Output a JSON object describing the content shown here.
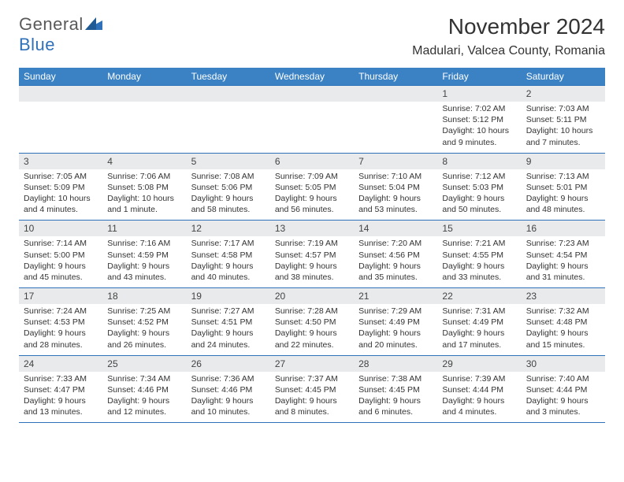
{
  "logo": {
    "general": "General",
    "blue": "Blue"
  },
  "title": "November 2024",
  "location": "Madulari, Valcea County, Romania",
  "colors": {
    "header_bg": "#3b82c4",
    "header_text": "#ffffff",
    "daynum_bg": "#e8eaec",
    "border": "#2f71b8",
    "body_text": "#333333",
    "logo_gray": "#5a5a5a",
    "logo_blue": "#2f71b8"
  },
  "day_headers": [
    "Sunday",
    "Monday",
    "Tuesday",
    "Wednesday",
    "Thursday",
    "Friday",
    "Saturday"
  ],
  "weeks": [
    [
      null,
      null,
      null,
      null,
      null,
      {
        "n": "1",
        "sr": "Sunrise: 7:02 AM",
        "ss": "Sunset: 5:12 PM",
        "dl1": "Daylight: 10 hours",
        "dl2": "and 9 minutes."
      },
      {
        "n": "2",
        "sr": "Sunrise: 7:03 AM",
        "ss": "Sunset: 5:11 PM",
        "dl1": "Daylight: 10 hours",
        "dl2": "and 7 minutes."
      }
    ],
    [
      {
        "n": "3",
        "sr": "Sunrise: 7:05 AM",
        "ss": "Sunset: 5:09 PM",
        "dl1": "Daylight: 10 hours",
        "dl2": "and 4 minutes."
      },
      {
        "n": "4",
        "sr": "Sunrise: 7:06 AM",
        "ss": "Sunset: 5:08 PM",
        "dl1": "Daylight: 10 hours",
        "dl2": "and 1 minute."
      },
      {
        "n": "5",
        "sr": "Sunrise: 7:08 AM",
        "ss": "Sunset: 5:06 PM",
        "dl1": "Daylight: 9 hours",
        "dl2": "and 58 minutes."
      },
      {
        "n": "6",
        "sr": "Sunrise: 7:09 AM",
        "ss": "Sunset: 5:05 PM",
        "dl1": "Daylight: 9 hours",
        "dl2": "and 56 minutes."
      },
      {
        "n": "7",
        "sr": "Sunrise: 7:10 AM",
        "ss": "Sunset: 5:04 PM",
        "dl1": "Daylight: 9 hours",
        "dl2": "and 53 minutes."
      },
      {
        "n": "8",
        "sr": "Sunrise: 7:12 AM",
        "ss": "Sunset: 5:03 PM",
        "dl1": "Daylight: 9 hours",
        "dl2": "and 50 minutes."
      },
      {
        "n": "9",
        "sr": "Sunrise: 7:13 AM",
        "ss": "Sunset: 5:01 PM",
        "dl1": "Daylight: 9 hours",
        "dl2": "and 48 minutes."
      }
    ],
    [
      {
        "n": "10",
        "sr": "Sunrise: 7:14 AM",
        "ss": "Sunset: 5:00 PM",
        "dl1": "Daylight: 9 hours",
        "dl2": "and 45 minutes."
      },
      {
        "n": "11",
        "sr": "Sunrise: 7:16 AM",
        "ss": "Sunset: 4:59 PM",
        "dl1": "Daylight: 9 hours",
        "dl2": "and 43 minutes."
      },
      {
        "n": "12",
        "sr": "Sunrise: 7:17 AM",
        "ss": "Sunset: 4:58 PM",
        "dl1": "Daylight: 9 hours",
        "dl2": "and 40 minutes."
      },
      {
        "n": "13",
        "sr": "Sunrise: 7:19 AM",
        "ss": "Sunset: 4:57 PM",
        "dl1": "Daylight: 9 hours",
        "dl2": "and 38 minutes."
      },
      {
        "n": "14",
        "sr": "Sunrise: 7:20 AM",
        "ss": "Sunset: 4:56 PM",
        "dl1": "Daylight: 9 hours",
        "dl2": "and 35 minutes."
      },
      {
        "n": "15",
        "sr": "Sunrise: 7:21 AM",
        "ss": "Sunset: 4:55 PM",
        "dl1": "Daylight: 9 hours",
        "dl2": "and 33 minutes."
      },
      {
        "n": "16",
        "sr": "Sunrise: 7:23 AM",
        "ss": "Sunset: 4:54 PM",
        "dl1": "Daylight: 9 hours",
        "dl2": "and 31 minutes."
      }
    ],
    [
      {
        "n": "17",
        "sr": "Sunrise: 7:24 AM",
        "ss": "Sunset: 4:53 PM",
        "dl1": "Daylight: 9 hours",
        "dl2": "and 28 minutes."
      },
      {
        "n": "18",
        "sr": "Sunrise: 7:25 AM",
        "ss": "Sunset: 4:52 PM",
        "dl1": "Daylight: 9 hours",
        "dl2": "and 26 minutes."
      },
      {
        "n": "19",
        "sr": "Sunrise: 7:27 AM",
        "ss": "Sunset: 4:51 PM",
        "dl1": "Daylight: 9 hours",
        "dl2": "and 24 minutes."
      },
      {
        "n": "20",
        "sr": "Sunrise: 7:28 AM",
        "ss": "Sunset: 4:50 PM",
        "dl1": "Daylight: 9 hours",
        "dl2": "and 22 minutes."
      },
      {
        "n": "21",
        "sr": "Sunrise: 7:29 AM",
        "ss": "Sunset: 4:49 PM",
        "dl1": "Daylight: 9 hours",
        "dl2": "and 20 minutes."
      },
      {
        "n": "22",
        "sr": "Sunrise: 7:31 AM",
        "ss": "Sunset: 4:49 PM",
        "dl1": "Daylight: 9 hours",
        "dl2": "and 17 minutes."
      },
      {
        "n": "23",
        "sr": "Sunrise: 7:32 AM",
        "ss": "Sunset: 4:48 PM",
        "dl1": "Daylight: 9 hours",
        "dl2": "and 15 minutes."
      }
    ],
    [
      {
        "n": "24",
        "sr": "Sunrise: 7:33 AM",
        "ss": "Sunset: 4:47 PM",
        "dl1": "Daylight: 9 hours",
        "dl2": "and 13 minutes."
      },
      {
        "n": "25",
        "sr": "Sunrise: 7:34 AM",
        "ss": "Sunset: 4:46 PM",
        "dl1": "Daylight: 9 hours",
        "dl2": "and 12 minutes."
      },
      {
        "n": "26",
        "sr": "Sunrise: 7:36 AM",
        "ss": "Sunset: 4:46 PM",
        "dl1": "Daylight: 9 hours",
        "dl2": "and 10 minutes."
      },
      {
        "n": "27",
        "sr": "Sunrise: 7:37 AM",
        "ss": "Sunset: 4:45 PM",
        "dl1": "Daylight: 9 hours",
        "dl2": "and 8 minutes."
      },
      {
        "n": "28",
        "sr": "Sunrise: 7:38 AM",
        "ss": "Sunset: 4:45 PM",
        "dl1": "Daylight: 9 hours",
        "dl2": "and 6 minutes."
      },
      {
        "n": "29",
        "sr": "Sunrise: 7:39 AM",
        "ss": "Sunset: 4:44 PM",
        "dl1": "Daylight: 9 hours",
        "dl2": "and 4 minutes."
      },
      {
        "n": "30",
        "sr": "Sunrise: 7:40 AM",
        "ss": "Sunset: 4:44 PM",
        "dl1": "Daylight: 9 hours",
        "dl2": "and 3 minutes."
      }
    ]
  ]
}
